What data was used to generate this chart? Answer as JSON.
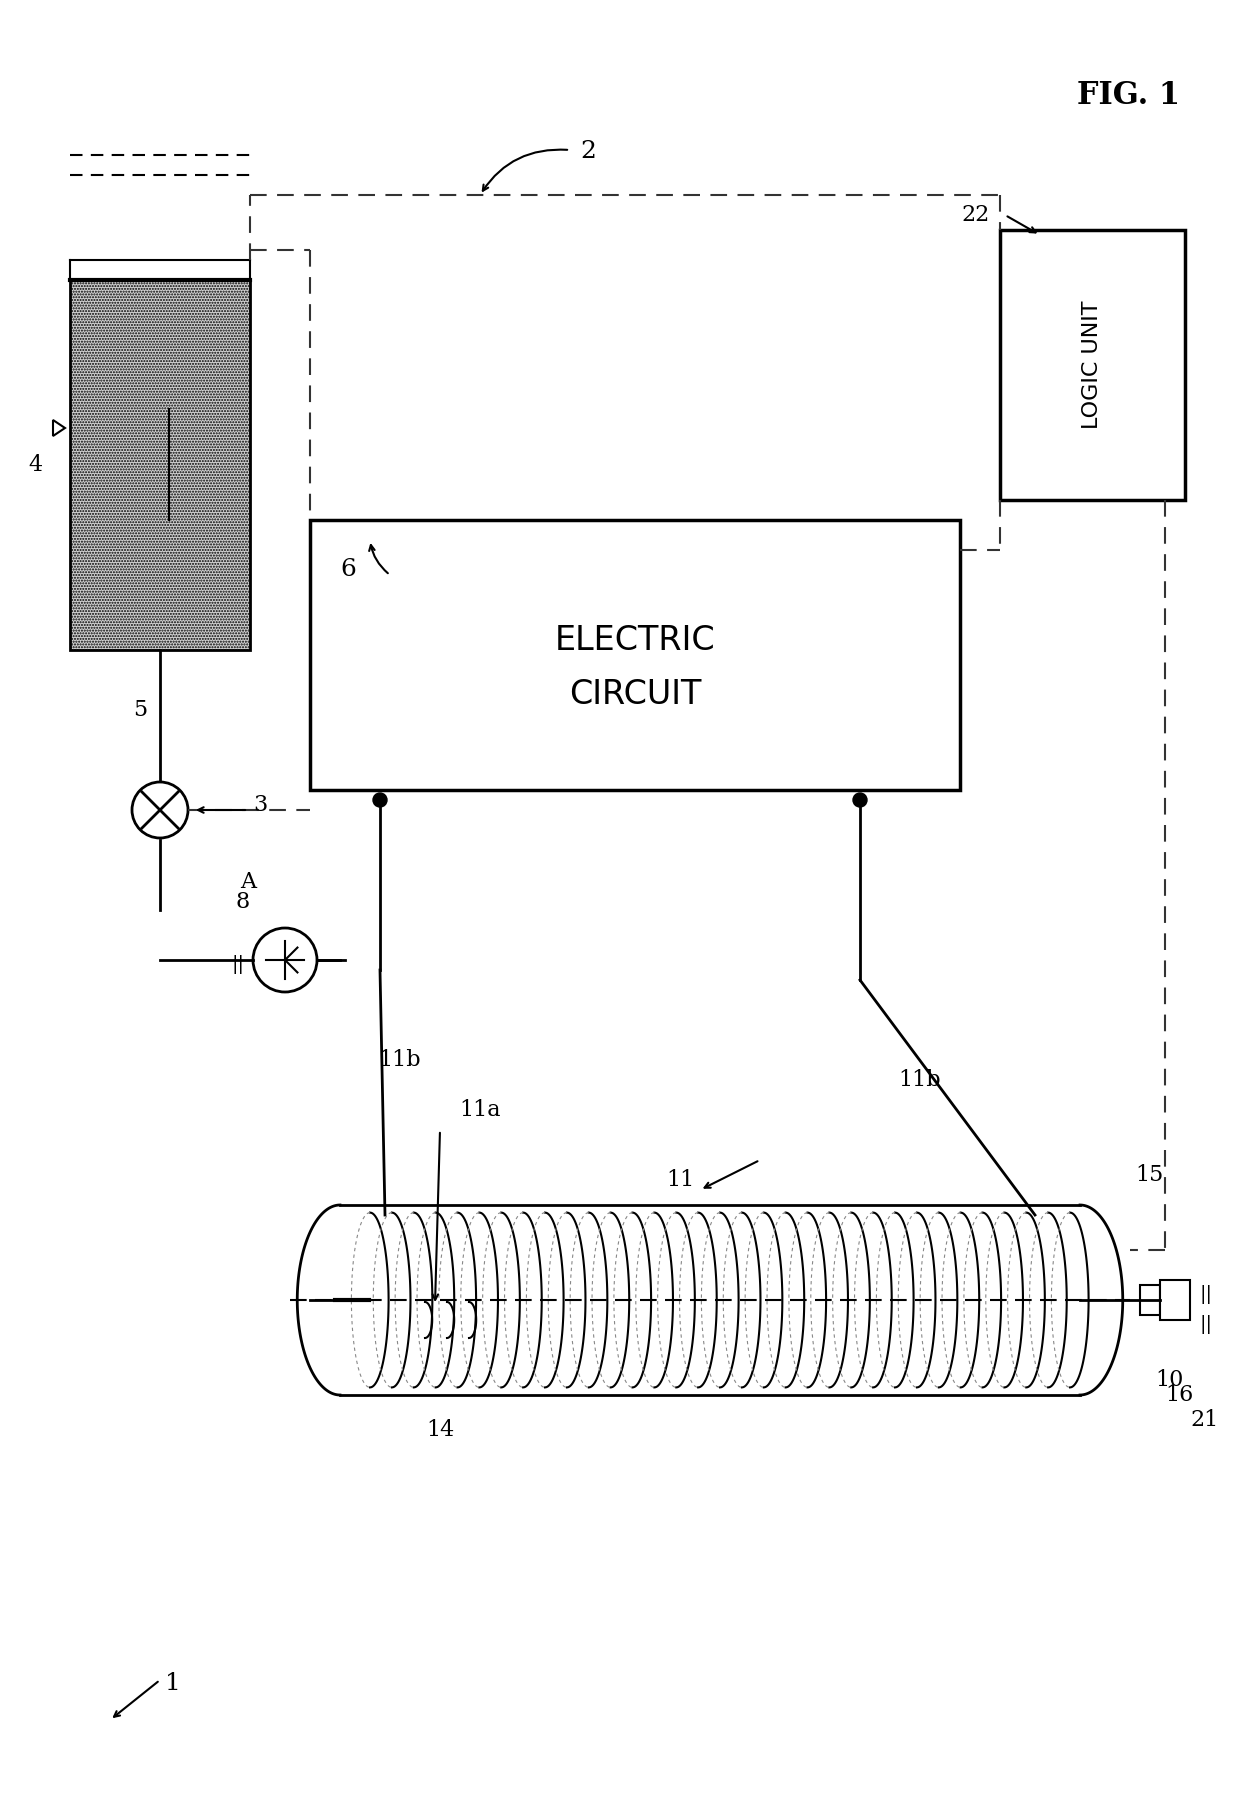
{
  "fig_label": "FIG. 1",
  "overall_label": "1",
  "system_label": "2",
  "water_tank_label": "4",
  "pipe_label": "5",
  "electric_circuit_label": "6",
  "electric_circuit_text": [
    "ELECTRIC",
    "CIRCUIT"
  ],
  "pump_label": "8",
  "heater_label": "10",
  "coil_label": "11",
  "coil_inner_label": "11a",
  "coil_ends_label": "11b",
  "logic_label": "22",
  "logic_text": "LOGIC UNIT",
  "valve_label": "3",
  "label_14": "14",
  "label_15": "15",
  "label_16": "16",
  "label_21": "21",
  "label_A": "A",
  "bg_color": "#ffffff",
  "line_color": "#000000",
  "dashed_color": "#333333",
  "tank_fill": "#d0d0d0",
  "body_fill": "#e8e8e8"
}
